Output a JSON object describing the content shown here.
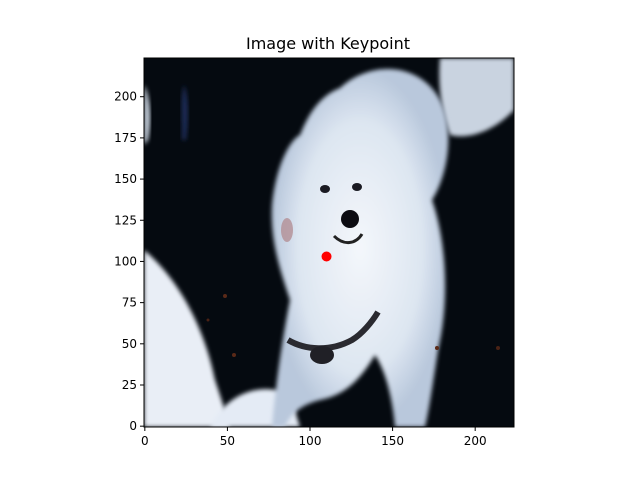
{
  "chart_data": {
    "type": "scatter",
    "title": "Image with Keypoint",
    "xlabel": "",
    "ylabel": "",
    "xlim": [
      -0.5,
      223.5
    ],
    "ylim": [
      223.5,
      -0.5
    ],
    "y_axis_inverted": true,
    "grid": false,
    "x_ticks": [
      0,
      50,
      100,
      150,
      200
    ],
    "y_ticks": [
      0,
      25,
      50,
      75,
      100,
      125,
      150,
      175,
      200
    ],
    "background_image": "white fluffy dog (Samoyed-like) on dark background, image 224x224",
    "keypoints": [
      {
        "x": 110,
        "y": 103,
        "color": "#ff0000"
      }
    ]
  }
}
